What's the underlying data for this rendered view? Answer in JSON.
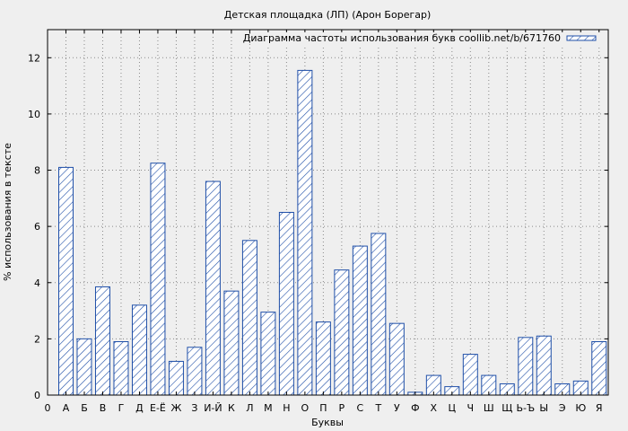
{
  "chart_data": {
    "type": "bar",
    "title": "Детская площадка (ЛП) (Арон Борегар)",
    "xlabel": "Буквы",
    "ylabel": "% использования в тексте",
    "legend": {
      "label": "Диаграмма частоты использования букв coollib.net/b/671760",
      "position": "top-right"
    },
    "x_zero_label": "0",
    "categories": [
      "А",
      "Б",
      "В",
      "Г",
      "Д",
      "Е-Ё",
      "Ж",
      "З",
      "И-Й",
      "К",
      "Л",
      "М",
      "Н",
      "О",
      "П",
      "Р",
      "С",
      "Т",
      "У",
      "Ф",
      "Х",
      "Ц",
      "Ч",
      "Ш",
      "Щ",
      "Ь-Ъ",
      "Ы",
      "Э",
      "Ю",
      "Я"
    ],
    "values": [
      8.1,
      2.0,
      3.85,
      1.9,
      3.2,
      8.25,
      1.2,
      1.7,
      7.6,
      3.7,
      5.5,
      2.95,
      6.5,
      11.55,
      2.6,
      4.45,
      5.3,
      5.75,
      2.55,
      0.1,
      0.7,
      0.3,
      1.45,
      0.7,
      0.4,
      2.05,
      2.1,
      0.4,
      0.5,
      1.9
    ],
    "yticks": [
      0,
      2,
      4,
      6,
      8,
      10,
      12
    ],
    "ylim": [
      0,
      13
    ],
    "grid": true,
    "colors": {
      "bar_stroke": "#1f4fa8",
      "background": "#efefef"
    }
  }
}
